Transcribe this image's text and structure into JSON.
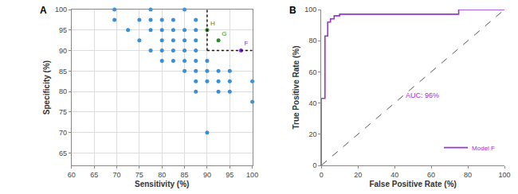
{
  "chart_data": [
    {
      "type": "scatter",
      "panel": "A",
      "x_label": "Sensitivity (%)",
      "y_label": "Specificity (%)",
      "xlim": [
        60,
        100
      ],
      "xticks": [
        60,
        65,
        70,
        75,
        80,
        85,
        90,
        95,
        100
      ],
      "ylim": [
        62,
        100
      ],
      "yticks": [
        65,
        70,
        75,
        80,
        85,
        90,
        95,
        100
      ],
      "grid": true,
      "reference_lines": {
        "x": 90,
        "y": 90
      },
      "series": [
        {
          "color": "#3a8fd6",
          "marker": "circle",
          "x": [
            69.5,
            69.5,
            75,
            77.5,
            77.5,
            80,
            82.5,
            85,
            87.5,
            72.5,
            77.5,
            80,
            82.5,
            85,
            87.5,
            75,
            80,
            82.5,
            85,
            87.5,
            77.5,
            80,
            82.5,
            85,
            87.5,
            80,
            82.5,
            85,
            87.5,
            90,
            85,
            87.5,
            90,
            92.5,
            95,
            87.5,
            90,
            92.5,
            95,
            100,
            87.5,
            92.5,
            95,
            100,
            90
          ],
          "values": [
            100,
            97.5,
            97.5,
            100,
            97.5,
            97.5,
            97.5,
            100,
            97.5,
            95,
            95,
            95,
            95,
            95,
            95,
            92.5,
            92.5,
            92.5,
            92.5,
            92.5,
            90,
            90,
            90,
            90,
            90,
            87.5,
            87.5,
            87.5,
            87.5,
            87.5,
            85,
            85,
            85,
            85,
            85,
            82.5,
            82.5,
            82.5,
            82.5,
            82.5,
            80,
            80,
            80,
            77.5,
            70
          ]
        },
        {
          "color": "#2e8b2e",
          "marker": "circle",
          "x": [
            90,
            92.5
          ],
          "values": [
            95,
            92.5
          ],
          "point_labels": [
            "H",
            "G"
          ]
        },
        {
          "color": "#8a2be2",
          "marker": "circle",
          "x": [
            97.5
          ],
          "values": [
            90
          ],
          "point_labels": [
            "F"
          ]
        }
      ]
    },
    {
      "type": "line",
      "panel": "B",
      "x_label": "False Positive Rate (%)",
      "y_label": "True Positive Rate (%)",
      "xlim": [
        0,
        100
      ],
      "xticks": [
        0,
        20,
        40,
        60,
        80,
        100
      ],
      "ylim": [
        0,
        100
      ],
      "yticks": [
        0,
        20,
        40,
        60,
        80,
        100
      ],
      "grid": false,
      "legend": "bottom right",
      "annotations": [
        {
          "text": "AUC: 96%",
          "x": 55,
          "y": 45
        }
      ],
      "series": [
        {
          "name": "Model F",
          "color": "#9b30d9",
          "line_style": "solid",
          "x": [
            0,
            0,
            2,
            2,
            3.5,
            3.5,
            5,
            5,
            7,
            7,
            10,
            10,
            75,
            75,
            100
          ],
          "values": [
            0,
            43,
            43,
            83,
            83,
            92,
            92,
            94,
            94,
            96,
            96,
            97,
            97,
            100,
            100
          ]
        },
        {
          "color": "#555555",
          "line_style": "dashed",
          "x": [
            0,
            100
          ],
          "values": [
            0,
            100
          ]
        }
      ]
    }
  ]
}
